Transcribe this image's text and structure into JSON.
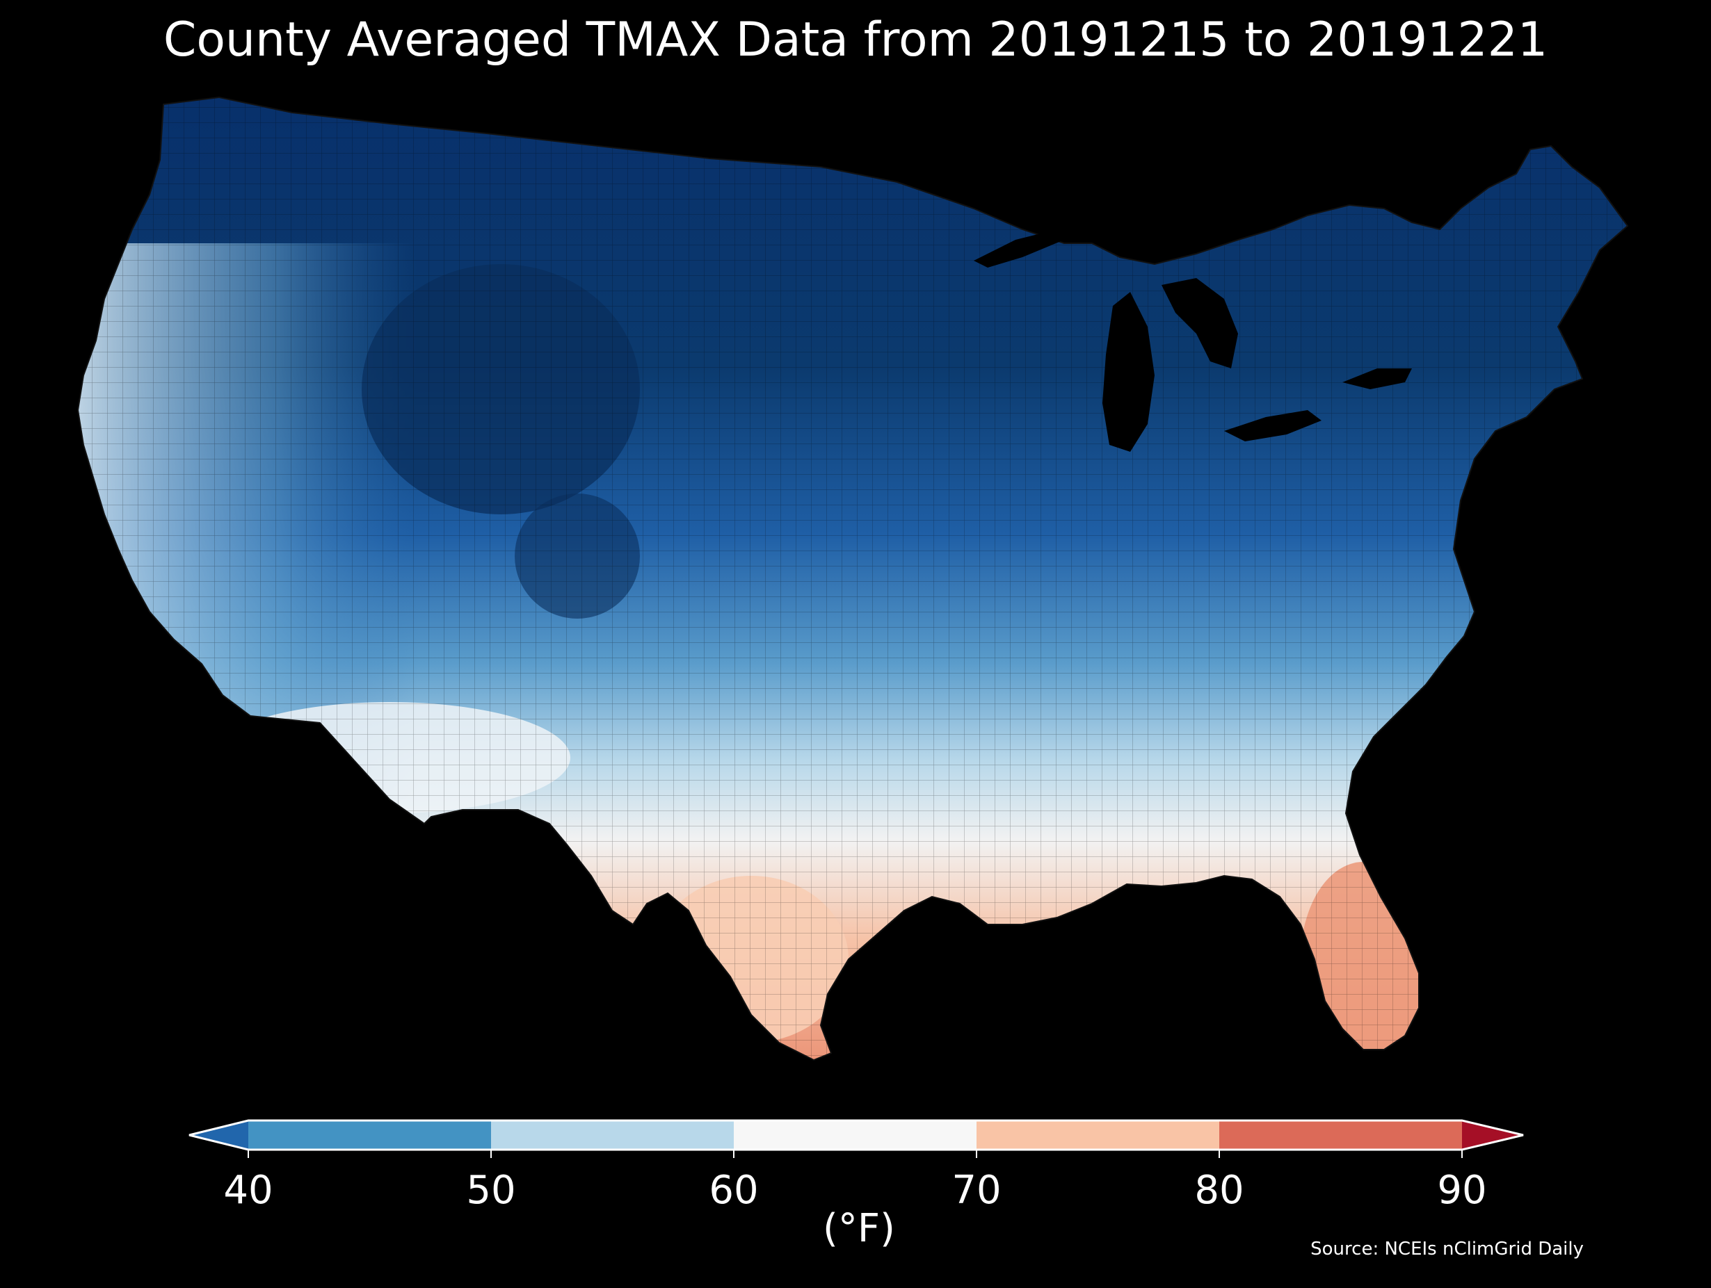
{
  "title": "County Averaged TMAX Data from 20191215 to 20191221",
  "colorbar": {
    "unit": "(°F)",
    "ticks": [
      "40",
      "50",
      "60",
      "70",
      "80",
      "90"
    ],
    "bins": [
      {
        "range": "<40",
        "color": "#2166ac"
      },
      {
        "range": "40-50",
        "color": "#4393c3"
      },
      {
        "range": "50-60",
        "color": "#b8d8ea"
      },
      {
        "range": "60-70",
        "color": "#f7f7f7"
      },
      {
        "range": "70-80",
        "color": "#f9c4a6"
      },
      {
        "range": "80-90",
        "color": "#dc6a58"
      },
      {
        "range": ">90",
        "color": "#a50f26"
      }
    ]
  },
  "source": "Source: NCEIs nClimGrid Daily",
  "map": {
    "region": "contiguous-united-states",
    "colors": {
      "cold_north": "#0b3a6e",
      "mid_north": "#1f5fa6",
      "mid_blue": "#4a90c4",
      "light_blue": "#b8d8ea",
      "near_white": "#f2f2f2",
      "warm_south": "#f6c3a8",
      "florida_warm": "#ea9376",
      "background": "#000000"
    }
  }
}
